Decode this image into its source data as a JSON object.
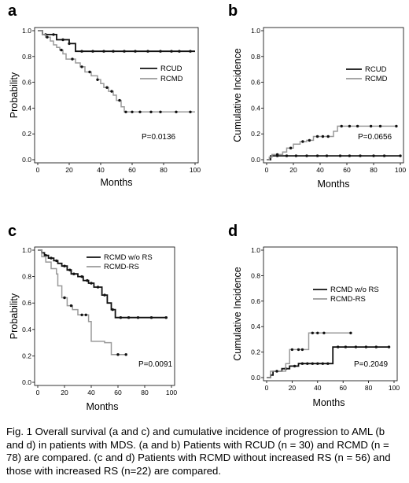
{
  "caption": "Fig. 1 Overall survival (a and c) and cumulative incidence of progression to AML (b and d) in patients with MDS. (a and b) Patients with RCUD (n = 30) and RCMD (n = 78) are compared. (c and d) Patients with RCMD without increased RS (n = 56) and those with increased RS (n=22) are compared.",
  "colors": {
    "dark": "#111111",
    "light": "#9a9a9a"
  },
  "chart_data": [
    {
      "panel": "a",
      "type": "line",
      "step": true,
      "xlabel": "Months",
      "ylabel": "Probability",
      "xlim": [
        0,
        100
      ],
      "ylim": [
        0,
        1
      ],
      "xticks": [
        "0",
        "20",
        "40",
        "60",
        "80",
        "100"
      ],
      "yticks": [
        "0.0",
        "0.2",
        "0.4",
        "0.6",
        "0.8",
        "1.0"
      ],
      "legend_position": "center-right",
      "pvalue": "P=0.0136",
      "series": [
        {
          "name": "RCUD",
          "color": "dark",
          "points": [
            [
              0,
              1.0
            ],
            [
              3,
              0.97
            ],
            [
              8,
              0.97
            ],
            [
              12,
              0.93
            ],
            [
              18,
              0.93
            ],
            [
              20,
              0.9
            ],
            [
              22,
              0.9
            ],
            [
              24,
              0.84
            ],
            [
              100,
              0.84
            ]
          ],
          "censor": [
            5,
            10,
            16,
            20,
            28,
            35,
            42,
            48,
            55,
            62,
            70,
            78,
            85,
            90,
            97
          ]
        },
        {
          "name": "RCMD",
          "color": "light",
          "points": [
            [
              0,
              1.0
            ],
            [
              3,
              0.97
            ],
            [
              5,
              0.95
            ],
            [
              8,
              0.92
            ],
            [
              10,
              0.89
            ],
            [
              12,
              0.87
            ],
            [
              14,
              0.85
            ],
            [
              16,
              0.82
            ],
            [
              18,
              0.78
            ],
            [
              24,
              0.75
            ],
            [
              27,
              0.72
            ],
            [
              30,
              0.68
            ],
            [
              34,
              0.65
            ],
            [
              38,
              0.62
            ],
            [
              40,
              0.59
            ],
            [
              42,
              0.56
            ],
            [
              45,
              0.53
            ],
            [
              48,
              0.5
            ],
            [
              50,
              0.46
            ],
            [
              53,
              0.41
            ],
            [
              55,
              0.37
            ],
            [
              100,
              0.37
            ]
          ],
          "censor": [
            6,
            15,
            22,
            28,
            33,
            38,
            44,
            47,
            52,
            56,
            60,
            65,
            72,
            78,
            88,
            97
          ]
        }
      ]
    },
    {
      "panel": "b",
      "type": "line",
      "step": true,
      "xlabel": "Months",
      "ylabel": "Cumulative Incidence",
      "xlim": [
        0,
        100
      ],
      "ylim": [
        0,
        1
      ],
      "xticks": [
        "0",
        "20",
        "40",
        "60",
        "80",
        "100"
      ],
      "yticks": [
        "0.0",
        "0.2",
        "0.4",
        "0.6",
        "0.8",
        "1.0"
      ],
      "legend_position": "center-right",
      "pvalue": "P=0.0656",
      "series": [
        {
          "name": "RCUD",
          "color": "dark",
          "points": [
            [
              0,
              0.0
            ],
            [
              3,
              0.03
            ],
            [
              100,
              0.03
            ]
          ],
          "censor": [
            8,
            15,
            22,
            30,
            38,
            45,
            55,
            62,
            70,
            80,
            88,
            100
          ]
        },
        {
          "name": "RCMD",
          "color": "light",
          "points": [
            [
              0,
              0.0
            ],
            [
              2,
              0.02
            ],
            [
              4,
              0.04
            ],
            [
              12,
              0.06
            ],
            [
              15,
              0.09
            ],
            [
              20,
              0.12
            ],
            [
              25,
              0.14
            ],
            [
              30,
              0.15
            ],
            [
              35,
              0.18
            ],
            [
              50,
              0.22
            ],
            [
              53,
              0.26
            ],
            [
              97,
              0.26
            ]
          ],
          "censor": [
            8,
            18,
            27,
            32,
            38,
            42,
            46,
            56,
            62,
            68,
            78,
            85,
            97
          ]
        }
      ]
    },
    {
      "panel": "c",
      "type": "line",
      "step": true,
      "xlabel": "Months",
      "ylabel": "Probability",
      "xlim": [
        0,
        100
      ],
      "ylim": [
        0,
        1
      ],
      "xticks": [
        "0",
        "20",
        "40",
        "60",
        "80",
        "100"
      ],
      "yticks": [
        "0.0",
        "0.2",
        "0.4",
        "0.6",
        "0.8",
        "1.0"
      ],
      "legend_position": "top-right",
      "pvalue": "P=0.0091",
      "series": [
        {
          "name": "RCMD w/o RS",
          "color": "dark",
          "points": [
            [
              0,
              1.0
            ],
            [
              3,
              0.98
            ],
            [
              5,
              0.96
            ],
            [
              8,
              0.94
            ],
            [
              12,
              0.92
            ],
            [
              15,
              0.9
            ],
            [
              18,
              0.88
            ],
            [
              22,
              0.85
            ],
            [
              25,
              0.82
            ],
            [
              30,
              0.8
            ],
            [
              34,
              0.77
            ],
            [
              38,
              0.75
            ],
            [
              42,
              0.72
            ],
            [
              48,
              0.66
            ],
            [
              52,
              0.6
            ],
            [
              55,
              0.55
            ],
            [
              58,
              0.49
            ],
            [
              97,
              0.49
            ]
          ],
          "censor": [
            6,
            10,
            14,
            20,
            24,
            27,
            33,
            37,
            40,
            45,
            50,
            56,
            62,
            68,
            75,
            85,
            96
          ]
        },
        {
          "name": "RCMD-RS",
          "color": "light",
          "points": [
            [
              0,
              1.0
            ],
            [
              3,
              0.95
            ],
            [
              6,
              0.91
            ],
            [
              10,
              0.86
            ],
            [
              14,
              0.82
            ],
            [
              15,
              0.73
            ],
            [
              18,
              0.64
            ],
            [
              22,
              0.58
            ],
            [
              26,
              0.55
            ],
            [
              30,
              0.51
            ],
            [
              38,
              0.46
            ],
            [
              40,
              0.31
            ],
            [
              50,
              0.3
            ],
            [
              55,
              0.21
            ],
            [
              66,
              0.21
            ]
          ],
          "censor": [
            20,
            25,
            33,
            36,
            60,
            66
          ]
        }
      ]
    },
    {
      "panel": "d",
      "type": "line",
      "step": true,
      "xlabel": "Months",
      "ylabel": "Cumulative Incidence",
      "xlim": [
        0,
        100
      ],
      "ylim": [
        0,
        1
      ],
      "xticks": [
        "0",
        "20",
        "40",
        "60",
        "80",
        "100"
      ],
      "yticks": [
        "0.0",
        "0.2",
        "0.4",
        "0.6",
        "0.8",
        "1.0"
      ],
      "legend_position": "center-right",
      "pvalue": "P=0.2049",
      "series": [
        {
          "name": "RCMD w/o RS",
          "color": "dark",
          "points": [
            [
              0,
              0.0
            ],
            [
              3,
              0.02
            ],
            [
              5,
              0.05
            ],
            [
              12,
              0.07
            ],
            [
              18,
              0.09
            ],
            [
              25,
              0.11
            ],
            [
              52,
              0.24
            ],
            [
              97,
              0.24
            ]
          ],
          "censor": [
            8,
            15,
            22,
            28,
            32,
            36,
            40,
            44,
            48,
            56,
            62,
            70,
            78,
            86,
            96
          ]
        },
        {
          "name": "RCMD-RS",
          "color": "light",
          "points": [
            [
              0,
              0.0
            ],
            [
              3,
              0.05
            ],
            [
              15,
              0.11
            ],
            [
              18,
              0.22
            ],
            [
              33,
              0.35
            ],
            [
              66,
              0.35
            ]
          ],
          "censor": [
            8,
            20,
            25,
            28,
            36,
            40,
            45,
            66
          ]
        }
      ]
    }
  ]
}
